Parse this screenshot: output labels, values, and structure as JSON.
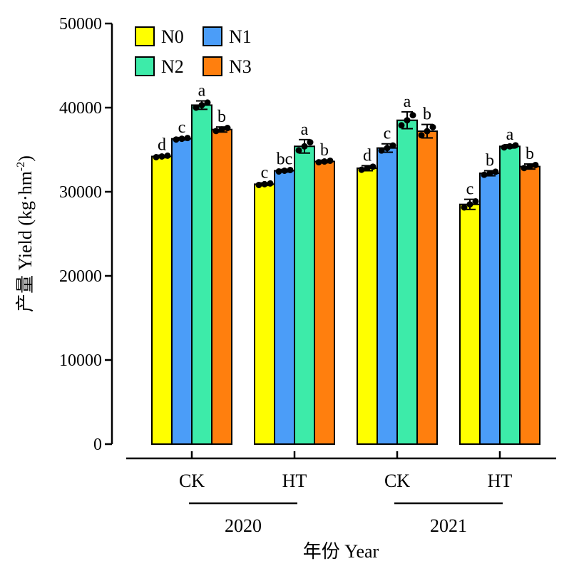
{
  "chart_data": {
    "type": "bar",
    "ylabel": "产量 Yield (kg·hm",
    "ylabel_sup": "-2",
    "ylabel_close": ")",
    "xlabel": "年份 Year",
    "ylim": [
      0,
      50000
    ],
    "yticks": [
      0,
      10000,
      20000,
      30000,
      40000,
      50000
    ],
    "groups": [
      {
        "label": "CK",
        "year": "2020"
      },
      {
        "label": "HT",
        "year": "2020"
      },
      {
        "label": "CK",
        "year": "2021"
      },
      {
        "label": "HT",
        "year": "2021"
      }
    ],
    "years": [
      {
        "label": "2020",
        "groups": [
          0,
          1
        ]
      },
      {
        "label": "2021",
        "groups": [
          2,
          3
        ]
      }
    ],
    "series": [
      {
        "name": "N0",
        "color": "#ffff00",
        "values": [
          34200,
          30900,
          32800,
          28500
        ],
        "errors": [
          150,
          150,
          300,
          600
        ],
        "letters": [
          "d",
          "c",
          "d",
          "c"
        ]
      },
      {
        "name": "N1",
        "color": "#4b9df8",
        "values": [
          36300,
          32500,
          35200,
          32200
        ],
        "errors": [
          150,
          150,
          500,
          300
        ],
        "letters": [
          "c",
          "bc",
          "c",
          "b"
        ]
      },
      {
        "name": "N2",
        "color": "#3deba9",
        "values": [
          40300,
          35400,
          38500,
          35400
        ],
        "errors": [
          500,
          800,
          1000,
          200
        ],
        "letters": [
          "a",
          "a",
          "a",
          "a"
        ]
      },
      {
        "name": "N3",
        "color": "#ff7f0e",
        "values": [
          37400,
          33600,
          37200,
          33000
        ],
        "errors": [
          300,
          150,
          800,
          300
        ],
        "letters": [
          "b",
          "b",
          "b",
          "b"
        ]
      }
    ],
    "legend": {
      "placement": "top-left"
    }
  }
}
